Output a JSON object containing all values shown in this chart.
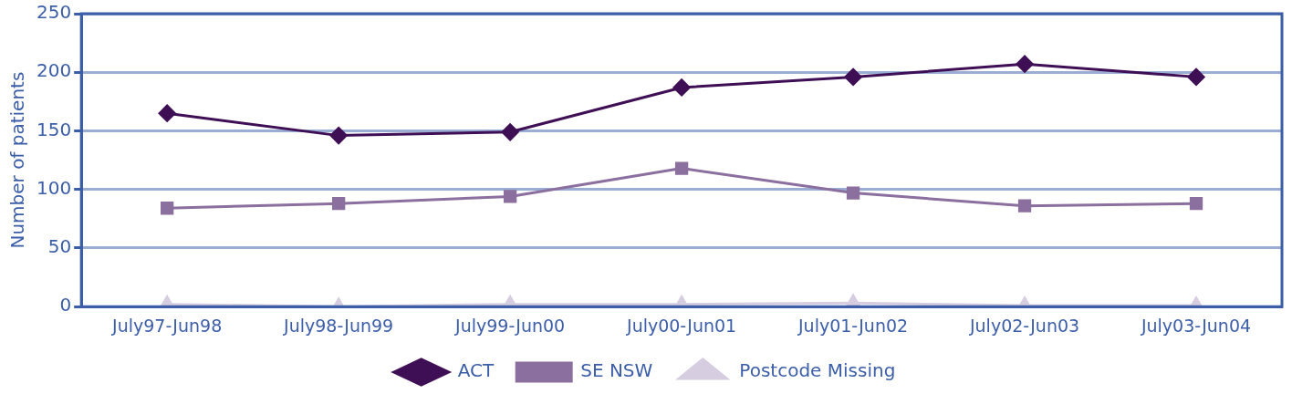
{
  "chart_data": {
    "type": "line",
    "ylabel": "Number of patients",
    "categories": [
      "July97-Jun98",
      "July98-Jun99",
      "July99-Jun00",
      "July00-Jun01",
      "July01-Jun02",
      "July02-Jun03",
      "July03-Jun04"
    ],
    "series": [
      {
        "name": "ACT",
        "color": "#3f0f56",
        "marker": "diamond",
        "values": [
          165,
          146,
          149,
          187,
          196,
          207,
          196
        ]
      },
      {
        "name": "SE NSW",
        "color": "#8b6f9e",
        "marker": "square",
        "values": [
          84,
          88,
          94,
          118,
          97,
          86,
          88
        ]
      },
      {
        "name": "Postcode Missing",
        "color": "#d6cde0",
        "marker": "triangle",
        "values": [
          2,
          0,
          2,
          2,
          3,
          1,
          1
        ]
      }
    ],
    "ylim": [
      0,
      250
    ],
    "yticks": [
      0,
      50,
      100,
      150,
      200,
      250
    ],
    "grid": "y",
    "legend": "bottom"
  }
}
